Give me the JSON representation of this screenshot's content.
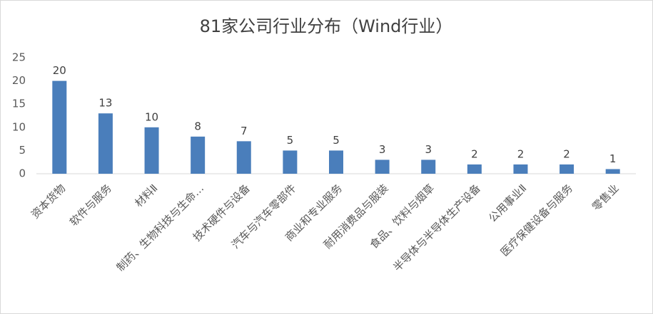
{
  "chart_data": {
    "type": "bar",
    "title": "81家公司行业分布（Wind行业）",
    "categories": [
      "资本货物",
      "软件与服务",
      "材料Ⅱ",
      "制药、生物科技与生命…",
      "技术硬件与设备",
      "汽车与汽车零部件",
      "商业和专业服务",
      "耐用消费品与服装",
      "食品、饮料与烟草",
      "半导体与半导体生产设备",
      "公用事业Ⅱ",
      "医疗保健设备与服务",
      "零售业"
    ],
    "values": [
      20,
      13,
      10,
      8,
      7,
      5,
      5,
      3,
      3,
      2,
      2,
      2,
      1
    ],
    "color": "#4a7ebb",
    "ylim": [
      0,
      25
    ],
    "yticks": [
      0,
      5,
      10,
      15,
      20,
      25
    ],
    "grid": false
  }
}
